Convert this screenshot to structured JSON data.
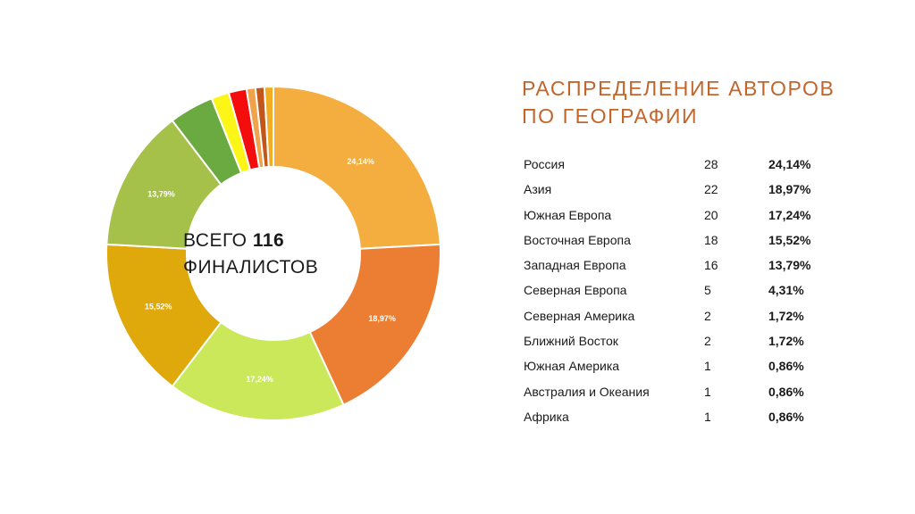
{
  "title": {
    "line1": "РАСПРЕДЕЛЕНИЕ АВТОРОВ",
    "line2": "ПО ГЕОГРАФИИ"
  },
  "center": {
    "prefix": "ВСЕГО",
    "total": "116",
    "suffix": "ФИНАЛИСТОВ"
  },
  "colors": {
    "title": "#c1652b",
    "slices": [
      "#f4ad3f",
      "#ec7e33",
      "#cbe85a",
      "#dfa80b",
      "#a6c14a",
      "#6aaa41",
      "#fbf617",
      "#f40d0d",
      "#efa34a",
      "#c3571a",
      "#f2ad22"
    ]
  },
  "rows": [
    {
      "name": "Россия",
      "count": "28",
      "pct": "24,14%"
    },
    {
      "name": "Азия",
      "count": "22",
      "pct": "18,97%"
    },
    {
      "name": "Южная Европа",
      "count": "20",
      "pct": "17,24%"
    },
    {
      "name": "Восточная Европа",
      "count": "18",
      "pct": "15,52%"
    },
    {
      "name": "Западная Европа",
      "count": "16",
      "pct": "13,79%"
    },
    {
      "name": "Северная Европа",
      "count": "5",
      "pct": "4,31%"
    },
    {
      "name": "Северная Америка",
      "count": "2",
      "pct": "1,72%"
    },
    {
      "name": "Ближний Восток",
      "count": "2",
      "pct": "1,72%"
    },
    {
      "name": "Южная Америка",
      "count": "1",
      "pct": "0,86%"
    },
    {
      "name": "Австралия и Океания",
      "count": "1",
      "pct": "0,86%"
    },
    {
      "name": "Африка",
      "count": "1",
      "pct": "0,86%"
    }
  ],
  "chart_data": {
    "type": "pie",
    "donut": true,
    "categories": [
      "Россия",
      "Азия",
      "Южная Европа",
      "Восточная Европа",
      "Западная Европа",
      "Северная Европа",
      "Северная Америка",
      "Ближний Восток",
      "Южная Америка",
      "Австралия и Океания",
      "Африка"
    ],
    "values": [
      28,
      22,
      20,
      18,
      16,
      5,
      2,
      2,
      1,
      1,
      1
    ],
    "slice_labels": [
      "24,14%",
      "18,97%",
      "17,24%",
      "15,52%",
      "13,79%",
      "",
      "",
      "",
      "",
      "",
      ""
    ]
  }
}
